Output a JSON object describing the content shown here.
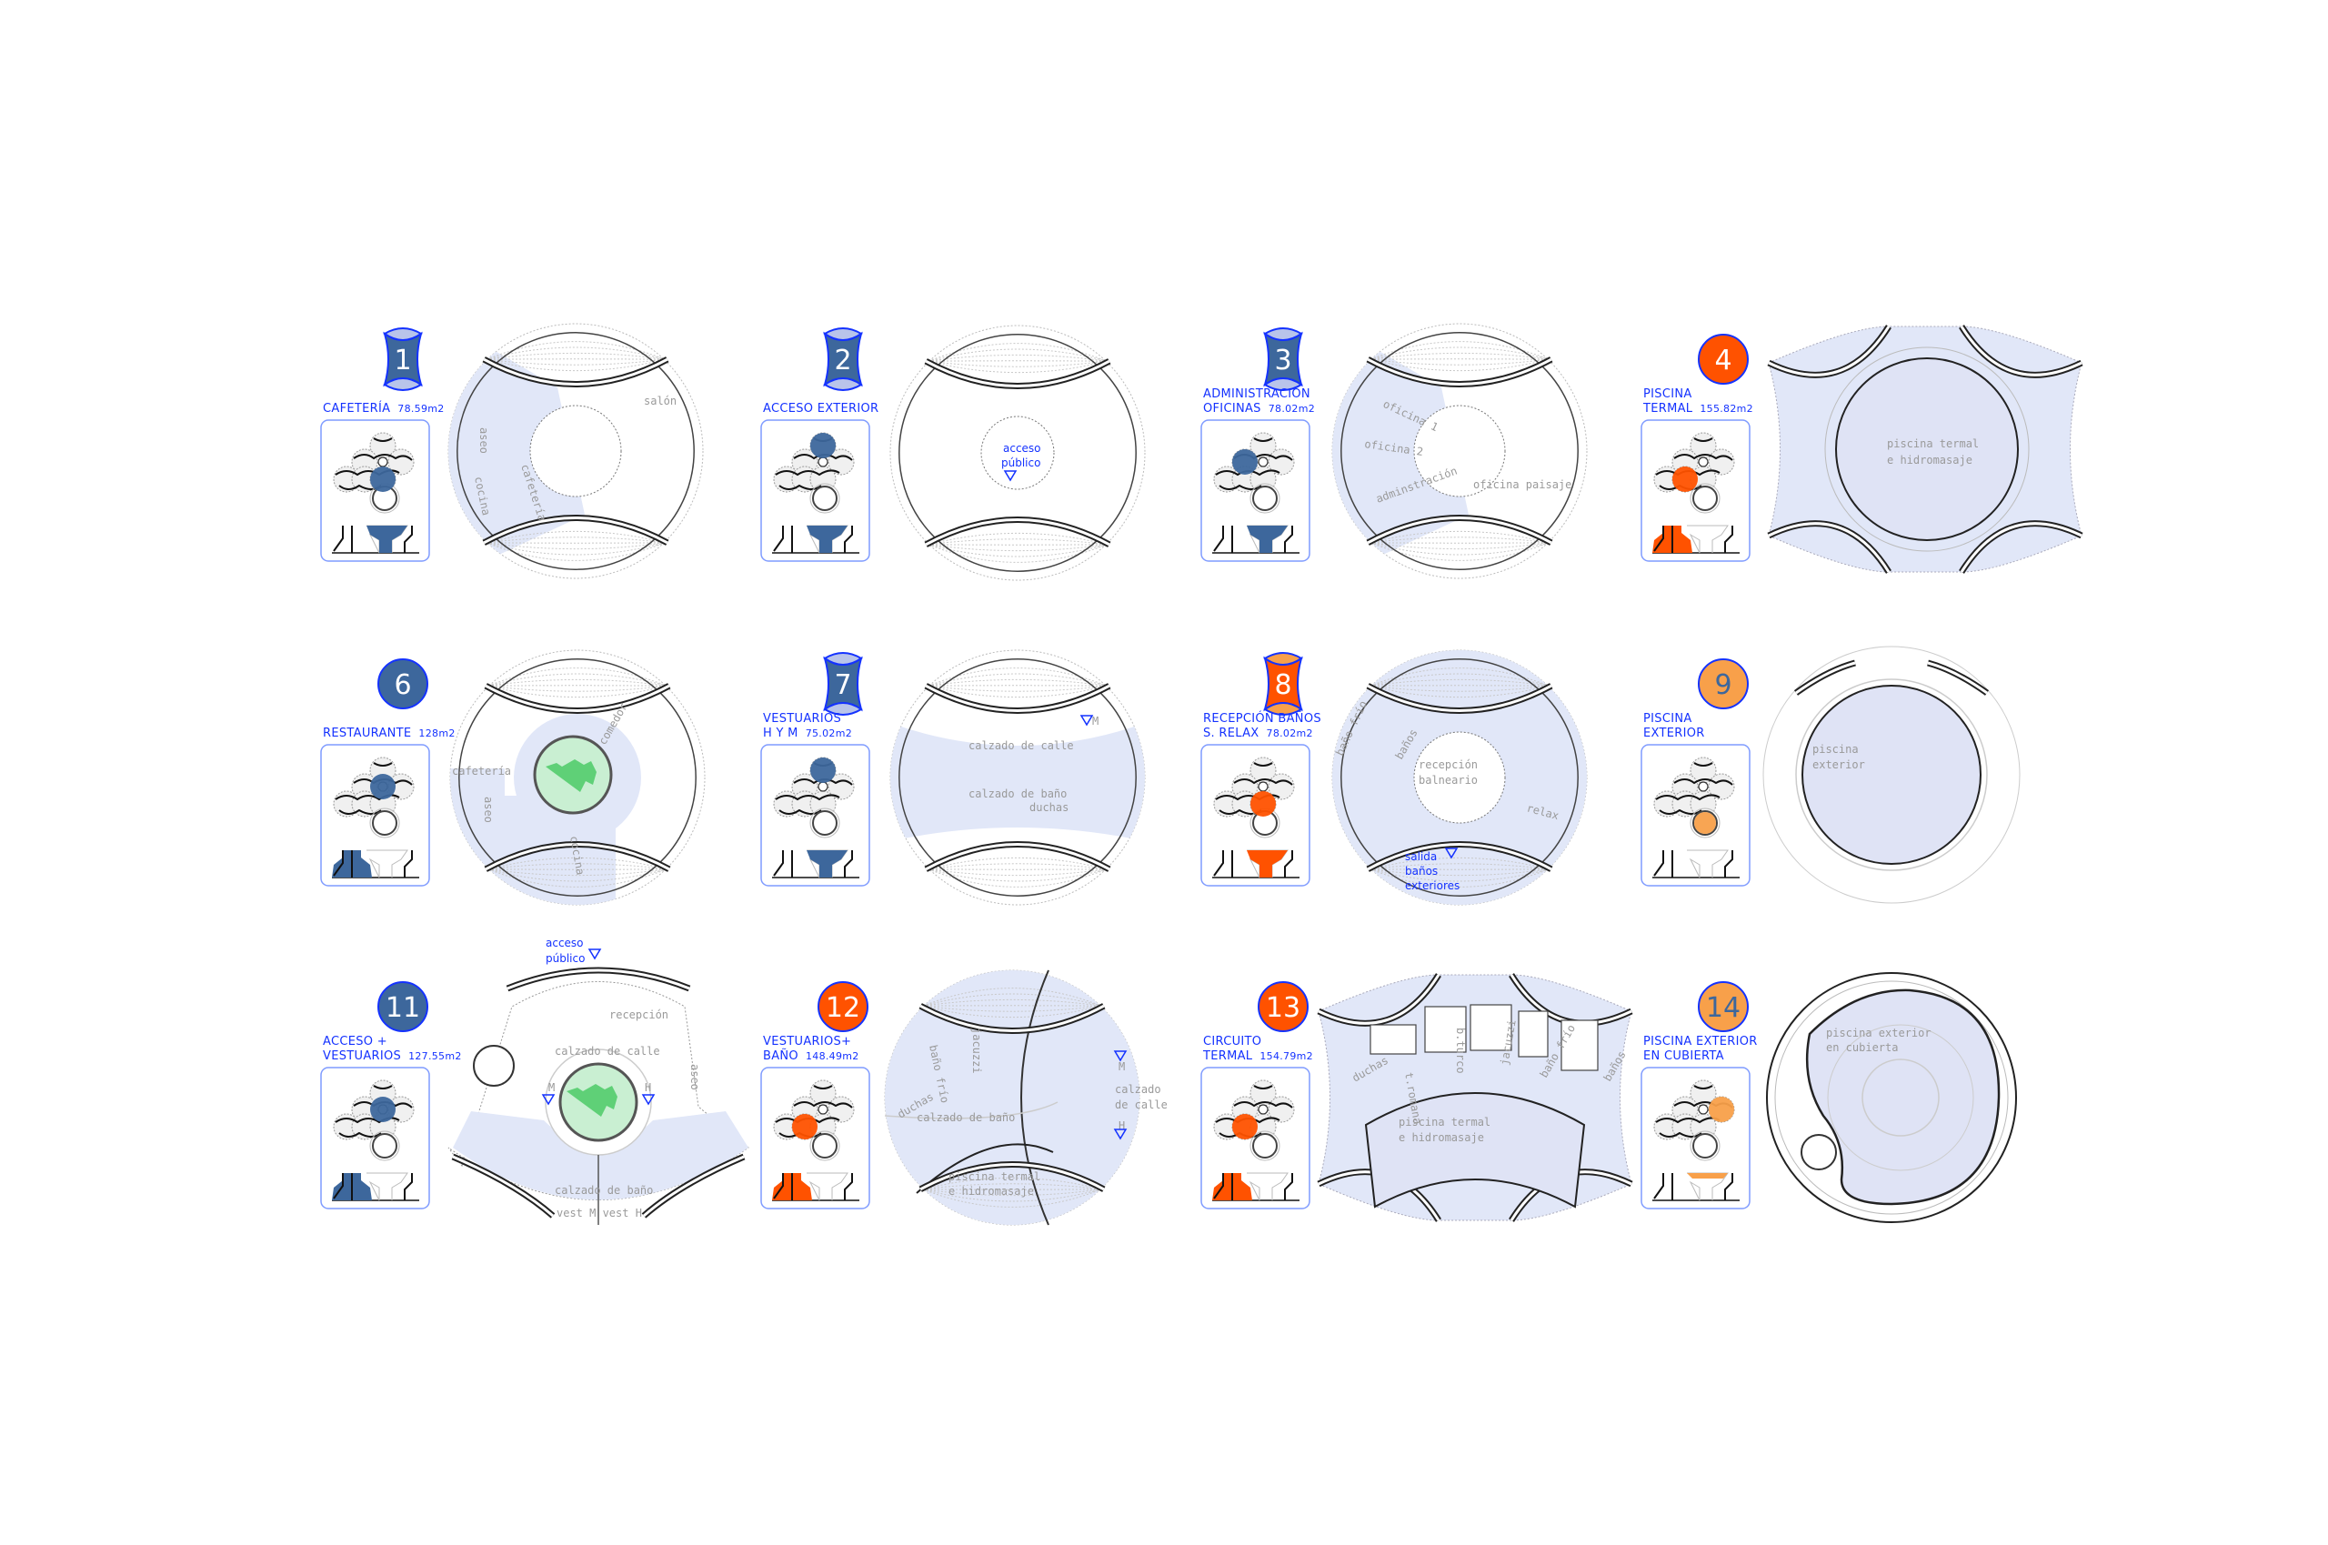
{
  "colors": {
    "label_blue": "#1432ff",
    "dark_blue": "#3d679c",
    "red_orange": "#ff5200",
    "light_orange": "#f8a04a",
    "plan_fill": "#e1e7f8",
    "pool_fill": "#dfe3f5",
    "garden_green": "#c9efd2",
    "room_text_gray": "#9a9a9a"
  },
  "panels": [
    {
      "number": "1",
      "badge": "hourglass",
      "badge_color": "#3d679c",
      "title_lines": [
        "CAFETERÍA"
      ],
      "area": "78.59m2",
      "rooms": [
        "salón",
        "cafetería",
        "aseo",
        "cocina"
      ],
      "notes": []
    },
    {
      "number": "2",
      "badge": "hourglass",
      "badge_color": "#3d679c",
      "title_lines": [
        "ACCESO EXTERIOR"
      ],
      "area": "",
      "rooms": [],
      "notes": [
        "acceso",
        "público"
      ]
    },
    {
      "number": "3",
      "badge": "hourglass",
      "badge_color": "#3d679c",
      "title_lines": [
        "ADMINISTRACIÓN",
        "OFICINAS"
      ],
      "area": "78.02m2",
      "rooms": [
        "oficina 1",
        "oficina 2",
        "adminstración",
        "oficina paisaje"
      ],
      "notes": []
    },
    {
      "number": "4",
      "badge": "circle",
      "badge_color": "#ff5200",
      "title_lines": [
        "PISCINA",
        "TERMAL"
      ],
      "area": "155.82m2",
      "rooms": [
        "piscina termal",
        "e hidromasaje"
      ],
      "notes": []
    },
    {
      "number": "6",
      "badge": "circle",
      "badge_color": "#3d679c",
      "title_lines": [
        "RESTAURANTE"
      ],
      "area": "128m2",
      "rooms": [
        "cafetería",
        "aseo",
        "comedor",
        "cocina"
      ],
      "notes": []
    },
    {
      "number": "7",
      "badge": "hourglass",
      "badge_color": "#3d679c",
      "title_lines": [
        "VESTUARIOS",
        "H Y M"
      ],
      "area": "75.02m2",
      "rooms": [
        "calzado de calle",
        "calzado de baño",
        "duchas",
        "M"
      ],
      "notes": []
    },
    {
      "number": "8",
      "badge": "hourglass-orange",
      "badge_color": "#ff5200",
      "title_lines": [
        "RECEPCIÓN BAÑOS",
        "S. RELAX"
      ],
      "area": "78.02m2",
      "rooms": [
        "baño frío",
        "baños",
        "recepción",
        "balneario",
        "relax"
      ],
      "notes": [
        "salida",
        "baños",
        "exteriores"
      ]
    },
    {
      "number": "9",
      "badge": "circle-light",
      "badge_color": "#f8a04a",
      "title_lines": [
        "PISCINA",
        "EXTERIOR"
      ],
      "area": "",
      "rooms": [
        "piscina",
        "exterior"
      ],
      "notes": []
    },
    {
      "number": "11",
      "badge": "circle",
      "badge_color": "#3d679c",
      "title_lines": [
        "ACCESO +",
        "VESTUARIOS"
      ],
      "area": "127.55m2",
      "rooms": [
        "recepción",
        "calzado de calle",
        "calzado de baño",
        "vest M vest H",
        "aseo",
        "M",
        "H"
      ],
      "notes": [
        "acceso",
        "público"
      ]
    },
    {
      "number": "12",
      "badge": "circle",
      "badge_color": "#ff5200",
      "title_lines": [
        "VESTUARIOS+",
        "BAÑO"
      ],
      "area": "148.49m2",
      "rooms": [
        "baño frío",
        "jacuzzi",
        "duchas",
        "calzado de baño",
        "piscina termal",
        "e hidromasaje",
        "calzado",
        "de calle",
        "M",
        "H"
      ],
      "notes": []
    },
    {
      "number": "13",
      "badge": "circle",
      "badge_color": "#ff5200",
      "title_lines": [
        "CIRCUITO",
        "TERMAL"
      ],
      "area": "154.79m2",
      "rooms": [
        "duchas",
        "t.romana",
        "b.turco",
        "jacuzzi",
        "baño frío",
        "baños",
        "piscina termal",
        "e hidromasaje"
      ],
      "notes": []
    },
    {
      "number": "14",
      "badge": "circle-light",
      "badge_color": "#f8a04a",
      "title_lines": [
        "PISCINA EXTERIOR",
        "EN CUBIERTA"
      ],
      "area": "",
      "rooms": [
        "piscina exterior",
        "en cubierta"
      ],
      "notes": []
    }
  ]
}
